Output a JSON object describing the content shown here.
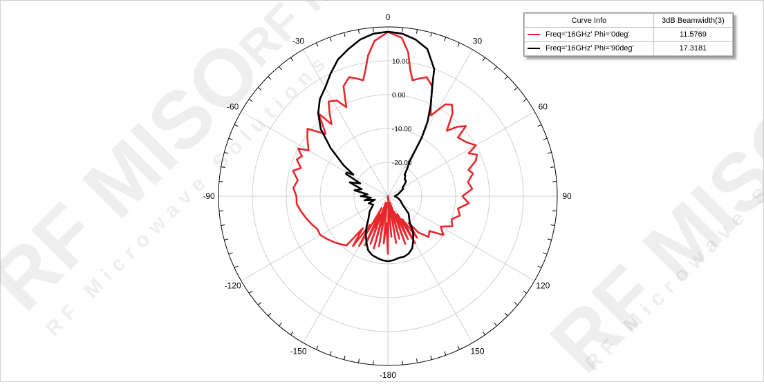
{
  "legend": {
    "header_curve": "Curve Info",
    "header_metric": "3dB Beamwidth(3)",
    "rows": [
      {
        "label": "Freq='16GHz' Phi='0deg'",
        "value": "11.5769",
        "color": "#e8272d"
      },
      {
        "label": "Freq='16GHz' Phi='90deg'",
        "value": "17.3181",
        "color": "#000000"
      }
    ]
  },
  "watermark": {
    "logo": "RF MISO",
    "tagline": "RF Microwave Solutions",
    "tm": "™"
  },
  "chart_data": {
    "type": "line",
    "subtype": "polar",
    "angle_ticks": [
      0,
      30,
      60,
      90,
      120,
      150,
      -180,
      -150,
      -120,
      -90,
      -60,
      -30
    ],
    "angle_tick_labels": [
      "0",
      "30",
      "60",
      "90",
      "120",
      "150",
      "-180",
      "-150",
      "-120",
      "-90",
      "-60",
      "-30"
    ],
    "radial_ticks": [
      10,
      0,
      -10,
      -20
    ],
    "radial_tick_labels": [
      "10.00",
      "0.00",
      "-10.00",
      "-20.00"
    ],
    "rlim": [
      -30,
      20
    ],
    "grid": true,
    "series": [
      {
        "name": "Freq='16GHz' Phi='0deg'",
        "color": "#e8272d",
        "theta_deg": [
          0,
          5,
          8,
          10,
          12,
          15,
          18,
          22,
          25,
          28,
          32,
          35,
          38,
          42,
          45,
          48,
          50,
          55,
          60,
          62,
          65,
          68,
          72,
          75,
          80,
          85,
          90,
          95,
          100,
          105,
          110,
          115,
          120,
          125,
          130,
          135,
          140,
          142,
          145,
          148,
          150,
          152,
          155,
          158,
          160,
          162,
          165,
          168,
          170,
          172,
          175,
          177,
          180,
          183,
          185,
          188,
          190,
          192,
          195,
          198,
          200,
          202,
          205,
          208,
          210,
          212,
          215,
          218,
          220,
          225,
          230,
          235,
          240,
          245,
          250,
          255,
          260,
          265,
          270,
          275,
          280,
          285,
          288,
          292,
          295,
          298,
          300,
          305,
          310,
          315,
          318,
          320,
          322,
          325,
          328,
          332,
          335,
          338,
          342,
          345,
          348,
          350,
          352,
          355,
          360
        ],
        "r_db": [
          18.5,
          17,
          13,
          8,
          5,
          6,
          7,
          5,
          0,
          -3,
          2,
          3,
          1,
          -4,
          -1,
          1,
          -3,
          -2,
          0,
          -3,
          -1,
          -2,
          -5,
          -4,
          -6,
          -5,
          -8,
          -6,
          -9,
          -8,
          -10,
          -9,
          -12,
          -10,
          -14,
          -13,
          -16,
          -20,
          -15,
          -22,
          -14,
          -24,
          -16,
          -25,
          -15,
          -28,
          -17,
          -27,
          -16,
          -30,
          -18,
          -27,
          -13,
          -22,
          -16,
          -28,
          -15,
          -26,
          -14,
          -28,
          -15,
          -24,
          -14,
          -26,
          -13,
          -20,
          -12,
          -18,
          -11,
          -10,
          -9,
          -8,
          -7,
          -7,
          -6,
          -5,
          -4,
          -3,
          -3,
          -2,
          -3,
          -1,
          -3,
          -1,
          -2,
          0,
          -3,
          -1,
          1,
          -4,
          -1,
          2,
          -3,
          0,
          3,
          2,
          -1,
          5,
          7,
          6,
          5,
          8,
          12,
          16,
          18.5
        ]
      },
      {
        "name": "Freq='16GHz' Phi='90deg'",
        "color": "#000000",
        "theta_deg": [
          0,
          5,
          10,
          15,
          20,
          22,
          25,
          28,
          30,
          32,
          35,
          38,
          40,
          45,
          50,
          55,
          60,
          65,
          70,
          80,
          90,
          100,
          110,
          120,
          130,
          140,
          145,
          150,
          155,
          160,
          165,
          170,
          175,
          180,
          185,
          190,
          195,
          200,
          205,
          210,
          215,
          220,
          230,
          240,
          250,
          255,
          260,
          265,
          270,
          275,
          280,
          285,
          290,
          295,
          298,
          300,
          302,
          305,
          310,
          315,
          320,
          325,
          330,
          335,
          340,
          345,
          350,
          355,
          360
        ],
        "r_db": [
          18.6,
          18.2,
          17,
          15,
          10,
          5,
          0,
          -5,
          -10,
          -18,
          -20,
          -22,
          -22,
          -23,
          -23,
          -24,
          -25,
          -25,
          -26,
          -27,
          -28,
          -27,
          -26,
          -25,
          -22,
          -20,
          -17,
          -15,
          -13,
          -12,
          -11.5,
          -11.5,
          -11,
          -10.8,
          -11,
          -11.5,
          -12,
          -13,
          -15,
          -17,
          -19,
          -21,
          -23,
          -25,
          -24,
          -26,
          -23,
          -25,
          -22,
          -24,
          -20,
          -22,
          -18,
          -21,
          -16,
          -16,
          -18,
          -14,
          -8,
          -2,
          2,
          5,
          7,
          10,
          13,
          15,
          17,
          18.2,
          18.6
        ]
      }
    ]
  }
}
